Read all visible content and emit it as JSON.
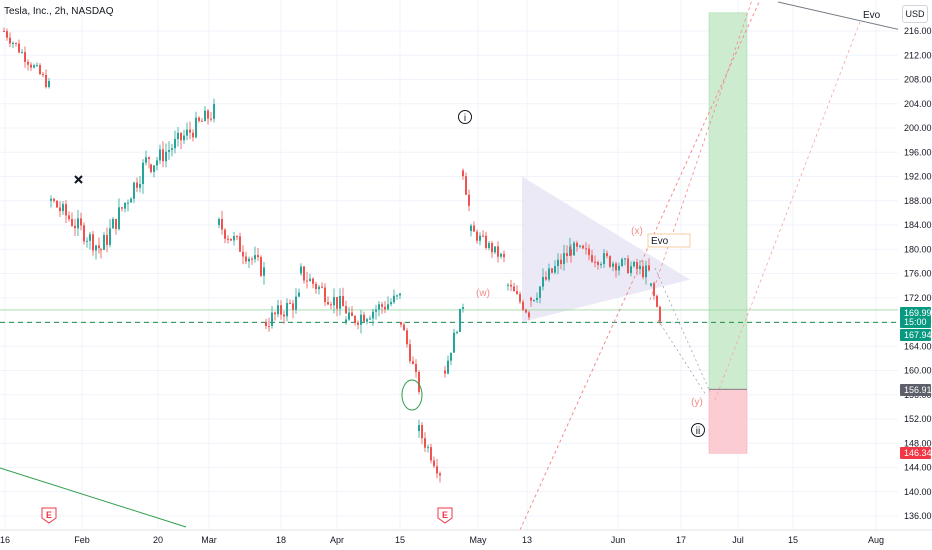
{
  "header": {
    "symbol_title": "Tesla, Inc., 2h, NASDAQ",
    "currency": "USD"
  },
  "colors": {
    "up": "#26a69a",
    "down": "#ef5350",
    "grid": "#f0f3fa",
    "price_line": "#089981",
    "target_green": "#cdeccf",
    "target_red": "#fbcdd2"
  },
  "chart_data": {
    "type": "candlestick",
    "y_axis": {
      "ticks": [
        "216.00",
        "212.00",
        "208.00",
        "204.00",
        "200.00",
        "196.00",
        "192.00",
        "188.00",
        "184.00",
        "180.00",
        "176.00",
        "172.00",
        "168.00",
        "164.00",
        "160.00",
        "156.00",
        "152.00",
        "148.00",
        "144.00",
        "140.00",
        "136.00"
      ],
      "ylim": [
        134,
        219
      ]
    },
    "x_axis": {
      "ticks": [
        "16",
        "Feb",
        "20",
        "Mar",
        "18",
        "Apr",
        "15",
        "May",
        "13",
        "Jun",
        "17",
        "Jul",
        "15",
        "Aug"
      ]
    },
    "price_tags": [
      {
        "label": "169.99",
        "value": 169.99,
        "color": "#089981"
      },
      {
        "label": "15:00",
        "value": 168.9,
        "color": "#089981"
      },
      {
        "label": "167.94",
        "value": 167.94,
        "color": "#089981"
      },
      {
        "label": "156.91",
        "value": 156.91,
        "color": "#5d606b"
      },
      {
        "label": "146.34",
        "value": 146.34,
        "color": "#f23645"
      }
    ],
    "horizontal_levels": [
      {
        "value": 169.99,
        "style": "solid"
      },
      {
        "value": 167.94,
        "style": "dashed"
      }
    ],
    "wave_labels": [
      "i",
      "ii",
      "(w)",
      "(x)",
      "(y)"
    ],
    "annotations": [
      "Evo",
      "Evo"
    ],
    "earnings_markers": [
      "E",
      "E"
    ],
    "target_box": {
      "top": 219,
      "mid": 156.91,
      "bottom": 146.34
    },
    "triangle": [
      [
        13,
        192
      ],
      [
        13,
        168
      ],
      [
        17,
        175
      ]
    ],
    "series": [
      {
        "segments": [
          {
            "start_x": 3,
            "end_x": 48,
            "start_y": 216,
            "end_y": 207,
            "noise": 2.0
          },
          {
            "start_x": 50,
            "end_x": 100,
            "start_y": 188,
            "end_y": 180,
            "noise": 3.0
          },
          {
            "start_x": 100,
            "end_x": 150,
            "start_y": 180,
            "end_y": 196,
            "noise": 3.5
          },
          {
            "start_x": 150,
            "end_x": 215,
            "start_y": 194,
            "end_y": 203,
            "noise": 3.0
          },
          {
            "start_x": 218,
            "end_x": 265,
            "start_y": 184,
            "end_y": 176,
            "noise": 3.0
          },
          {
            "start_x": 265,
            "end_x": 300,
            "start_y": 168,
            "end_y": 172,
            "noise": 3.0
          },
          {
            "start_x": 300,
            "end_x": 345,
            "start_y": 176,
            "end_y": 170,
            "noise": 3.0
          },
          {
            "start_x": 345,
            "end_x": 400,
            "start_y": 168,
            "end_y": 172,
            "noise": 3.0
          },
          {
            "start_x": 400,
            "end_x": 418,
            "start_y": 168,
            "end_y": 157,
            "noise": 2.0
          },
          {
            "start_x": 418,
            "end_x": 440,
            "start_y": 150,
            "end_y": 143,
            "noise": 2.5
          },
          {
            "start_x": 444,
            "end_x": 462,
            "start_y": 160,
            "end_y": 171,
            "noise": 2.0
          },
          {
            "start_x": 462,
            "end_x": 470,
            "start_y": 193,
            "end_y": 185,
            "noise": 2.5
          },
          {
            "start_x": 470,
            "end_x": 505,
            "start_y": 183,
            "end_y": 178,
            "noise": 2.0
          },
          {
            "start_x": 507,
            "end_x": 530,
            "start_y": 174,
            "end_y": 169,
            "noise": 2.0
          },
          {
            "start_x": 530,
            "end_x": 570,
            "start_y": 172,
            "end_y": 180,
            "noise": 3.0
          },
          {
            "start_x": 570,
            "end_x": 650,
            "start_y": 180,
            "end_y": 176,
            "noise": 2.5
          },
          {
            "start_x": 650,
            "end_x": 660,
            "start_y": 174,
            "end_y": 168,
            "noise": 1.5
          }
        ]
      }
    ]
  }
}
